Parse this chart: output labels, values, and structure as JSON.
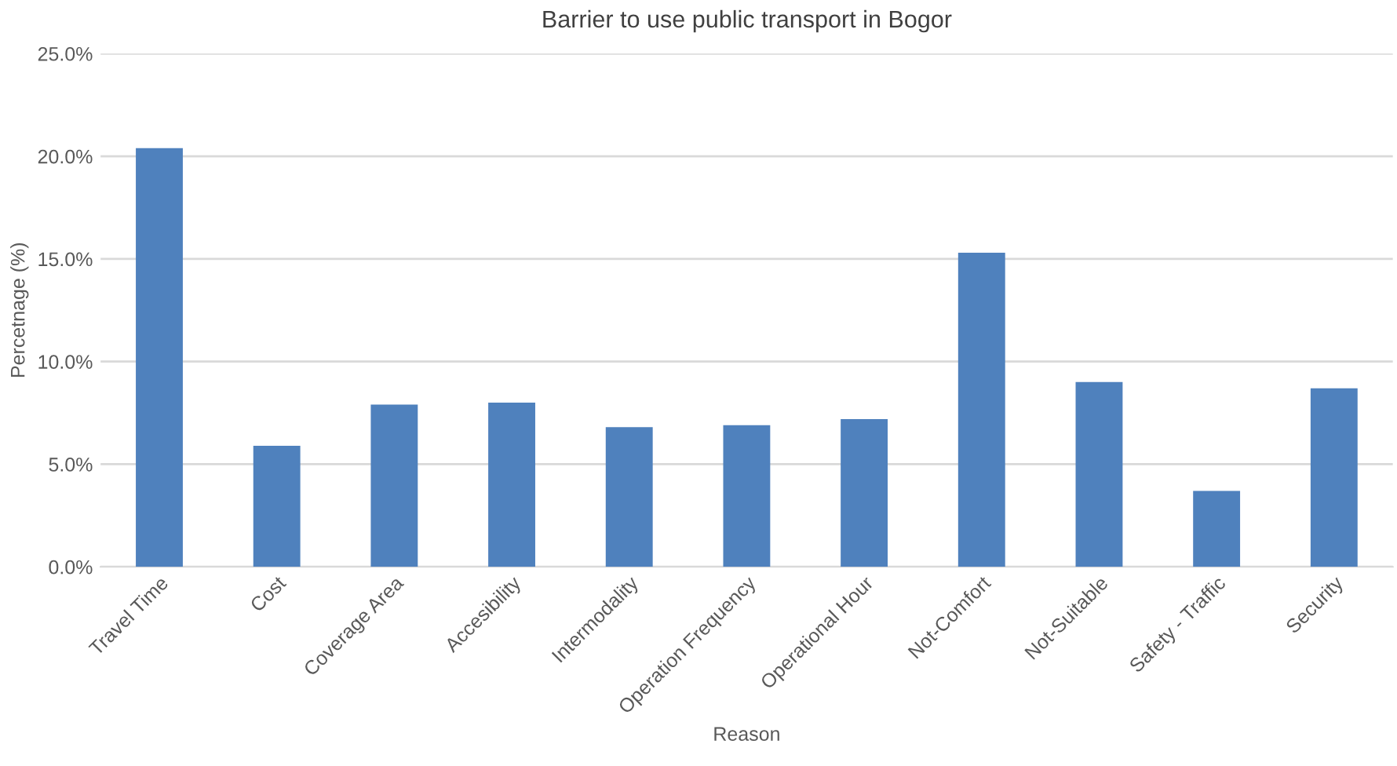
{
  "chart_data": {
    "type": "bar",
    "title": "Barrier to use public transport in Bogor",
    "xlabel": "Reason",
    "ylabel": "Percetnage (%)",
    "categories": [
      "Travel Time",
      "Cost",
      "Coverage Area",
      "Accesibility",
      "Intermodality",
      "Operation Frequency",
      "Operational Hour",
      "Not-Comfort",
      "Not-Suitable",
      "Safety - Traffic",
      "Security"
    ],
    "values": [
      20.4,
      5.9,
      7.9,
      8.0,
      6.8,
      6.9,
      7.2,
      15.3,
      9.0,
      3.7,
      8.7
    ],
    "color": "#4f81bd",
    "ylim": [
      0,
      25
    ],
    "yticks": [
      {
        "value": 0,
        "label": "0.0%"
      },
      {
        "value": 5,
        "label": "5.0%"
      },
      {
        "value": 10,
        "label": "10.0%"
      },
      {
        "value": 15,
        "label": "15.0%"
      },
      {
        "value": 20,
        "label": "20.0%"
      },
      {
        "value": 25,
        "label": "25.0%"
      }
    ],
    "grid": "y",
    "legend": false
  }
}
